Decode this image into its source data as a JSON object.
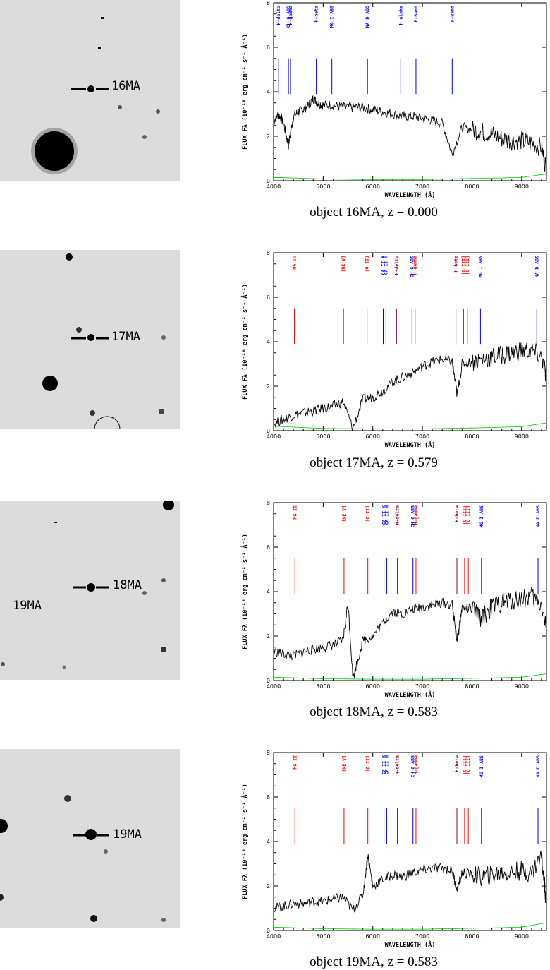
{
  "chart_data": [
    {
      "type": "line",
      "caption": "object 16MA, z = 0.000",
      "thumbnail": {
        "labels": [
          "16MA"
        ]
      },
      "xlabel": "WAVELENGTH (Å)",
      "ylabel": "FLUX Fλ (10⁻¹⁸ erg cm⁻² s⁻¹ Å⁻¹)",
      "xlim": [
        4000,
        9500
      ],
      "ylim": [
        0,
        8
      ],
      "xticks": [
        4000,
        5000,
        6000,
        7000,
        8000,
        9000
      ],
      "yticks": [
        0,
        2,
        4,
        6,
        8
      ],
      "lines": [
        {
          "label": "H-delta",
          "x": 4102,
          "color": "#0000ff"
        },
        {
          "label": "CH G ABS",
          "x": 4300,
          "color": "#0000ff"
        },
        {
          "label": "H-gamma",
          "x": 4340,
          "color": "#0000ff"
        },
        {
          "label": "H-beta",
          "x": 4861,
          "color": "#0000ff"
        },
        {
          "label": "MG I ABS",
          "x": 5175,
          "color": "#0000ff"
        },
        {
          "label": "NA D ABS",
          "x": 5893,
          "color": "#0000ff"
        },
        {
          "label": "H-alpha",
          "x": 6563,
          "color": "#0000ff"
        },
        {
          "label": "B-Band",
          "x": 6870,
          "color": "#0000ff"
        },
        {
          "label": "A-Band",
          "x": 7600,
          "color": "#0000ff"
        }
      ],
      "series": [
        {
          "name": "",
          "color": "#000000",
          "x": [
            4000,
            4100,
            4200,
            4300,
            4400,
            4500,
            4600,
            4700,
            4800,
            4900,
            5000,
            5200,
            5400,
            5600,
            5800,
            6000,
            6200,
            6400,
            6600,
            6800,
            7000,
            7200,
            7400,
            7600,
            7800,
            8000,
            8200,
            8400,
            8600,
            8800,
            9000,
            9200,
            9400,
            9500
          ],
          "y": [
            2.7,
            3.0,
            2.6,
            1.6,
            2.9,
            3.1,
            3.2,
            3.4,
            3.7,
            3.5,
            3.4,
            3.4,
            3.3,
            3.3,
            3.3,
            3.2,
            3.1,
            3.0,
            2.9,
            2.9,
            2.8,
            2.7,
            2.6,
            1.2,
            2.4,
            2.3,
            2.2,
            2.1,
            1.9,
            1.8,
            1.8,
            1.7,
            1.5,
            0.5
          ]
        },
        {
          "name": "",
          "color": "#00cc00",
          "x": [
            4000,
            5000,
            6000,
            7000,
            7500,
            8000,
            8500,
            9000,
            9500
          ],
          "y": [
            0.15,
            0.08,
            0.05,
            0.05,
            0.08,
            0.1,
            0.12,
            0.15,
            0.3
          ]
        }
      ]
    },
    {
      "type": "line",
      "caption": "object 17MA, z = 0.579",
      "thumbnail": {
        "labels": [
          "17MA"
        ]
      },
      "xlabel": "WAVELENGTH (Å)",
      "ylabel": "FLUX Fλ (10⁻¹⁸ erg cm⁻² s⁻¹ Å⁻¹)",
      "xlim": [
        4000,
        9500
      ],
      "ylim": [
        0,
        8
      ],
      "xticks": [
        4000,
        5000,
        6000,
        7000,
        8000,
        9000
      ],
      "yticks": [
        0,
        2,
        4,
        6,
        8
      ],
      "lines": [
        {
          "label": "MG II",
          "x": 4420,
          "color": "#ff0000"
        },
        {
          "label": "[NE V]",
          "x": 5410,
          "color": "#ff0000"
        },
        {
          "label": "[O II]",
          "x": 5885,
          "color": "#ff0000"
        },
        {
          "label": "CA II K",
          "x": 6210,
          "color": "#0000ff"
        },
        {
          "label": "CA II H",
          "x": 6265,
          "color": "#0000ff"
        },
        {
          "label": "H-delta",
          "x": 6478,
          "color": "#990033"
        },
        {
          "label": "CH G ABS",
          "x": 6790,
          "color": "#0000ff"
        },
        {
          "label": "H-gamma",
          "x": 6853,
          "color": "#ff0000"
        },
        {
          "label": "H-beta",
          "x": 7676,
          "color": "#990033"
        },
        {
          "label": "[O III]",
          "x": 7829,
          "color": "#ff0000"
        },
        {
          "label": "[O III]",
          "x": 7905,
          "color": "#ff0000"
        },
        {
          "label": "MG I ABS",
          "x": 8170,
          "color": "#0000ff"
        },
        {
          "label": "NA D ABS",
          "x": 9305,
          "color": "#0000ff"
        }
      ],
      "series": [
        {
          "name": "",
          "color": "#000000",
          "x": [
            4000,
            4200,
            4400,
            4600,
            4800,
            5000,
            5200,
            5400,
            5600,
            5800,
            6000,
            6200,
            6400,
            6600,
            6800,
            7000,
            7200,
            7400,
            7600,
            7700,
            7800,
            8000,
            8200,
            8400,
            8600,
            8800,
            9000,
            9200,
            9400,
            9500
          ],
          "y": [
            0.3,
            0.5,
            0.7,
            0.8,
            0.9,
            1.0,
            1.1,
            1.3,
            0.1,
            1.4,
            1.5,
            1.8,
            2.2,
            2.4,
            2.6,
            2.9,
            3.1,
            3.2,
            3.1,
            1.6,
            3.0,
            3.1,
            3.2,
            3.3,
            3.4,
            3.5,
            3.6,
            3.6,
            3.3,
            2.4
          ]
        },
        {
          "name": "",
          "color": "#00cc00",
          "x": [
            4000,
            5000,
            6000,
            7000,
            7500,
            8000,
            8500,
            9000,
            9500
          ],
          "y": [
            0.2,
            0.1,
            0.08,
            0.08,
            0.1,
            0.12,
            0.15,
            0.18,
            0.35
          ]
        }
      ]
    },
    {
      "type": "line",
      "caption": "object 18MA, z = 0.583",
      "thumbnail": {
        "labels": [
          "18MA",
          "19MA"
        ]
      },
      "xlabel": "WAVELENGTH (Å)",
      "ylabel": "FLUX Fλ (10⁻¹⁸ erg cm⁻² s⁻¹ Å⁻¹)",
      "xlim": [
        4000,
        9500
      ],
      "ylim": [
        0,
        8
      ],
      "xticks": [
        4000,
        5000,
        6000,
        7000,
        8000,
        9000
      ],
      "yticks": [
        0,
        2,
        4,
        6,
        8
      ],
      "lines": [
        {
          "label": "MG II",
          "x": 4430,
          "color": "#ff0000"
        },
        {
          "label": "[NE V]",
          "x": 5420,
          "color": "#ff0000"
        },
        {
          "label": "[O II]",
          "x": 5900,
          "color": "#ff0000"
        },
        {
          "label": "CA II K",
          "x": 6225,
          "color": "#0000ff"
        },
        {
          "label": "CA II H",
          "x": 6280,
          "color": "#0000ff"
        },
        {
          "label": "H-delta",
          "x": 6495,
          "color": "#990033"
        },
        {
          "label": "CH G ABS",
          "x": 6810,
          "color": "#0000ff"
        },
        {
          "label": "H-gamma",
          "x": 6870,
          "color": "#ff0000"
        },
        {
          "label": "H-beta",
          "x": 7695,
          "color": "#990033"
        },
        {
          "label": "[O III]",
          "x": 7850,
          "color": "#ff0000"
        },
        {
          "label": "[O III]",
          "x": 7925,
          "color": "#ff0000"
        },
        {
          "label": "MG I ABS",
          "x": 8190,
          "color": "#0000ff"
        },
        {
          "label": "NA D ABS",
          "x": 9330,
          "color": "#0000ff"
        }
      ],
      "series": [
        {
          "name": "",
          "color": "#000000",
          "x": [
            4000,
            4200,
            4400,
            4600,
            4800,
            5000,
            5200,
            5400,
            5500,
            5600,
            5800,
            6000,
            6200,
            6400,
            6600,
            6800,
            7000,
            7200,
            7400,
            7600,
            7700,
            7800,
            8000,
            8200,
            8400,
            8600,
            8800,
            9000,
            9200,
            9400,
            9500
          ],
          "y": [
            1.3,
            1.2,
            1.1,
            1.3,
            1.4,
            1.5,
            1.6,
            1.8,
            3.5,
            0.1,
            1.8,
            2.0,
            2.6,
            3.1,
            3.0,
            3.2,
            3.3,
            3.4,
            3.5,
            3.4,
            1.8,
            3.3,
            3.2,
            2.8,
            3.3,
            3.5,
            3.6,
            3.7,
            3.8,
            3.4,
            2.3
          ]
        },
        {
          "name": "",
          "color": "#00cc00",
          "x": [
            4000,
            5000,
            6000,
            7000,
            7500,
            8000,
            8500,
            9000,
            9500
          ],
          "y": [
            0.15,
            0.08,
            0.06,
            0.06,
            0.08,
            0.1,
            0.12,
            0.15,
            0.3
          ]
        }
      ]
    },
    {
      "type": "line",
      "caption": "object 19MA, z = 0.583",
      "thumbnail": {
        "labels": [
          "19MA"
        ]
      },
      "xlabel": "WAVELENGTH (Å)",
      "ylabel": "FLUX Fλ (10⁻¹⁸ erg cm⁻² s⁻¹ Å⁻¹)",
      "xlim": [
        4000,
        9500
      ],
      "ylim": [
        0,
        8
      ],
      "xticks": [
        4000,
        5000,
        6000,
        7000,
        8000,
        9000
      ],
      "yticks": [
        0,
        2,
        4,
        6,
        8
      ],
      "lines": [
        {
          "label": "MG II",
          "x": 4430,
          "color": "#ff0000"
        },
        {
          "label": "[NE V]",
          "x": 5420,
          "color": "#ff0000"
        },
        {
          "label": "[O II]",
          "x": 5900,
          "color": "#ff0000"
        },
        {
          "label": "CA II K",
          "x": 6225,
          "color": "#0000ff"
        },
        {
          "label": "CA II H",
          "x": 6280,
          "color": "#0000ff"
        },
        {
          "label": "H-delta",
          "x": 6495,
          "color": "#990033"
        },
        {
          "label": "CH G ABS",
          "x": 6810,
          "color": "#0000ff"
        },
        {
          "label": "H-gamma",
          "x": 6870,
          "color": "#ff0000"
        },
        {
          "label": "H-beta",
          "x": 7695,
          "color": "#990033"
        },
        {
          "label": "[O III]",
          "x": 7850,
          "color": "#ff0000"
        },
        {
          "label": "[O III]",
          "x": 7925,
          "color": "#ff0000"
        },
        {
          "label": "MG I ABS",
          "x": 8190,
          "color": "#0000ff"
        },
        {
          "label": "NA D ABS",
          "x": 9330,
          "color": "#0000ff"
        }
      ],
      "series": [
        {
          "name": "",
          "color": "#000000",
          "x": [
            4000,
            4200,
            4400,
            4600,
            4800,
            5000,
            5200,
            5400,
            5600,
            5800,
            5900,
            6000,
            6200,
            6400,
            6600,
            6800,
            7000,
            7200,
            7400,
            7600,
            7700,
            7800,
            8000,
            8200,
            8400,
            8600,
            8800,
            9000,
            9200,
            9400,
            9500
          ],
          "y": [
            1.0,
            1.1,
            1.2,
            1.2,
            1.3,
            1.3,
            1.4,
            1.5,
            0.9,
            1.6,
            3.4,
            2.0,
            2.3,
            2.5,
            2.4,
            2.6,
            2.7,
            2.8,
            2.8,
            2.7,
            1.8,
            2.6,
            2.5,
            2.4,
            2.5,
            2.6,
            2.6,
            2.7,
            2.6,
            3.4,
            1.2
          ]
        },
        {
          "name": "",
          "color": "#00cc00",
          "x": [
            4000,
            5000,
            6000,
            7000,
            7500,
            8000,
            8500,
            9000,
            9500
          ],
          "y": [
            0.15,
            0.08,
            0.06,
            0.06,
            0.08,
            0.1,
            0.12,
            0.15,
            0.35
          ]
        }
      ]
    }
  ]
}
